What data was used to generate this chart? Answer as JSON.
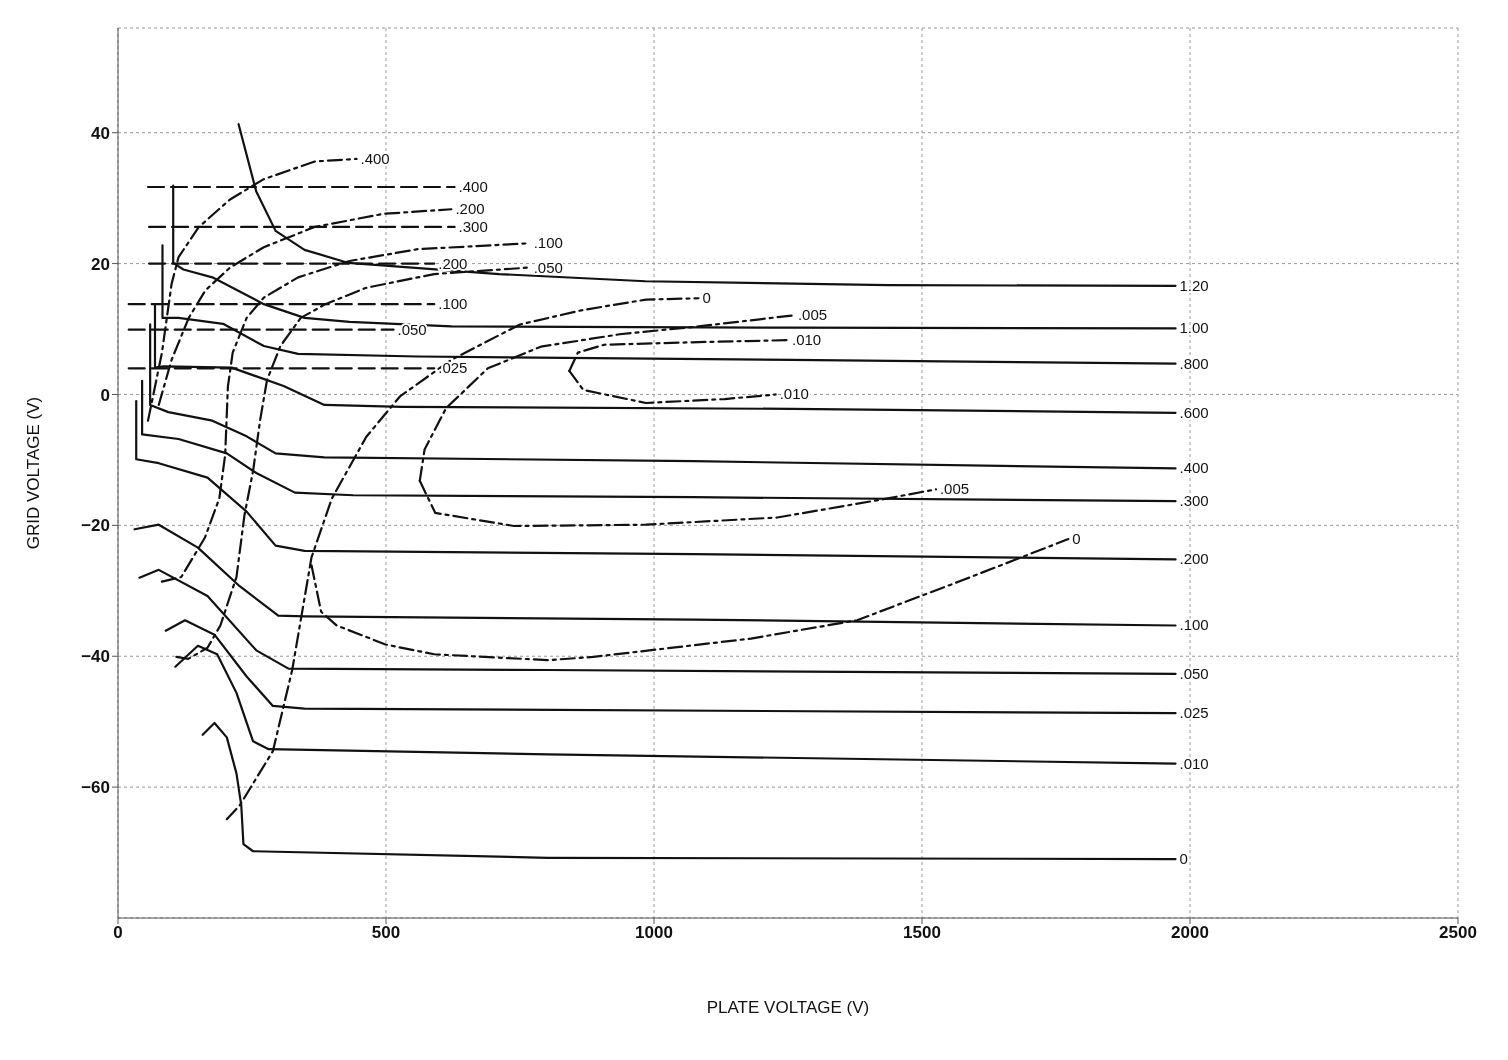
{
  "chart_data": {
    "type": "line",
    "xlabel": "PLATE VOLTAGE (V)",
    "ylabel": "GRID VOLTAGE (V)",
    "xlim": [
      0,
      2500
    ],
    "ylim": [
      -80,
      56
    ],
    "xticks": [
      0,
      500,
      1000,
      1500,
      2000,
      2500
    ],
    "yticks": [
      -60,
      -40,
      -20,
      0,
      20,
      40
    ],
    "grid": true,
    "legend": false,
    "marker": "none",
    "series": [
      {
        "name": "1.20",
        "color": "#111111",
        "line_style": "solid",
        "x": [
          225,
          258,
          294,
          348,
          430,
          711,
          984,
          1437,
          1973
        ],
        "values": [
          41.3,
          31.0,
          25.0,
          22.1,
          20.1,
          18.4,
          17.3,
          16.7,
          16.6
        ]
      },
      {
        "name": "1.00",
        "color": "#111111",
        "line_style": "solid",
        "x": [
          103,
          103,
          122,
          176,
          272,
          348,
          432,
          622,
          1256,
          1973
        ],
        "values": [
          31.9,
          20.1,
          19.1,
          17.9,
          13.8,
          11.7,
          11.1,
          10.4,
          10.2,
          10.1
        ]
      },
      {
        "name": ".800",
        "color": "#111111",
        "line_style": "solid",
        "x": [
          83,
          83,
          113,
          196,
          272,
          336,
          559,
          1256,
          1973
        ],
        "values": [
          22.8,
          11.7,
          11.7,
          10.8,
          7.4,
          6.2,
          5.8,
          5.3,
          4.7
        ]
      },
      {
        "name": ".600",
        "color": "#111111",
        "line_style": "solid",
        "x": [
          69,
          69,
          85,
          212,
          309,
          385,
          530,
          1256,
          1973
        ],
        "values": [
          13.8,
          4.1,
          4.3,
          4.1,
          1.3,
          -1.6,
          -1.9,
          -2.2,
          -2.8
        ]
      },
      {
        "name": ".400",
        "color": "#111111",
        "line_style": "solid",
        "x": [
          60,
          60,
          94,
          176,
          240,
          294,
          385,
          1074,
          1973
        ],
        "values": [
          10.7,
          -1.6,
          -2.7,
          -4.0,
          -6.4,
          -9.0,
          -9.6,
          -10.2,
          -11.3
        ]
      },
      {
        "name": ".300",
        "color": "#111111",
        "line_style": "solid",
        "x": [
          45,
          45,
          113,
          203,
          258,
          330,
          439,
          1074,
          1973
        ],
        "values": [
          2.1,
          -6.1,
          -6.8,
          -9.0,
          -12.0,
          -15.0,
          -15.4,
          -15.7,
          -16.3
        ]
      },
      {
        "name": ".200",
        "color": "#111111",
        "line_style": "solid",
        "x": [
          34,
          34,
          76,
          167,
          240,
          294,
          348,
          1074,
          1973
        ],
        "values": [
          -1.0,
          -9.9,
          -10.5,
          -12.7,
          -17.9,
          -23.1,
          -23.9,
          -24.4,
          -25.2
        ]
      },
      {
        "name": ".100",
        "color": "#111111",
        "line_style": "solid",
        "x": [
          31,
          76,
          149,
          227,
          299,
          348,
          1074,
          1973
        ],
        "values": [
          -20.6,
          -19.9,
          -23.4,
          -29.3,
          -33.8,
          -33.9,
          -34.4,
          -35.3
        ]
      },
      {
        "name": ".050",
        "color": "#111111",
        "line_style": "solid",
        "x": [
          40,
          76,
          167,
          258,
          318,
          802,
          1973
        ],
        "values": [
          -28.0,
          -26.8,
          -30.8,
          -39.1,
          -41.9,
          -42.1,
          -42.7
        ]
      },
      {
        "name": ".025",
        "color": "#111111",
        "line_style": "solid",
        "x": [
          89,
          125,
          180,
          240,
          289,
          348,
          1973
        ],
        "values": [
          -36.1,
          -34.5,
          -36.7,
          -43.1,
          -47.6,
          -48.0,
          -48.7
        ]
      },
      {
        "name": ".010",
        "color": "#111111",
        "line_style": "solid",
        "x": [
          107,
          149,
          185,
          221,
          252,
          281,
          802,
          1973
        ],
        "values": [
          -41.6,
          -38.4,
          -39.7,
          -45.6,
          -53.0,
          -54.2,
          -55.0,
          -56.4
        ]
      },
      {
        "name": "0",
        "color": "#111111",
        "line_style": "solid",
        "x": [
          158,
          180,
          203,
          221,
          230,
          234,
          252,
          802,
          1973
        ],
        "values": [
          -52.0,
          -50.2,
          -52.4,
          -57.9,
          -62.8,
          -68.7,
          -69.8,
          -70.8,
          -71.0
        ]
      },
      {
        "name": ".400",
        "color": "#111111",
        "line_style": "dashed",
        "x": [
          56,
          628
        ],
        "values": [
          31.7,
          31.7
        ]
      },
      {
        "name": ".300",
        "color": "#111111",
        "line_style": "dashed",
        "x": [
          58,
          628
        ],
        "values": [
          25.6,
          25.6
        ]
      },
      {
        "name": ".200",
        "color": "#111111",
        "line_style": "dashed",
        "x": [
          58,
          590
        ],
        "values": [
          20.0,
          20.0
        ]
      },
      {
        "name": ".100",
        "color": "#111111",
        "line_style": "dashed",
        "x": [
          20,
          590
        ],
        "values": [
          13.8,
          13.8
        ]
      },
      {
        "name": ".050",
        "color": "#111111",
        "line_style": "dashed",
        "x": [
          20,
          514
        ],
        "values": [
          9.9,
          9.9
        ]
      },
      {
        "name": ".025",
        "color": "#111111",
        "line_style": "dashed",
        "x": [
          20,
          590
        ],
        "values": [
          4.0,
          4.0
        ]
      },
      {
        "name": ".400",
        "color": "#111111",
        "line_style": "dotted",
        "x": [
          56,
          82,
          100,
          113,
          151,
          209,
          272,
          367,
          445
        ],
        "values": [
          -4.0,
          6.4,
          16.9,
          21.0,
          25.6,
          29.8,
          32.9,
          35.6,
          36.0
        ]
      },
      {
        "name": ".200",
        "color": "#111111",
        "line_style": "dotted",
        "x": [
          76,
          100,
          132,
          163,
          209,
          272,
          367,
          495,
          622
        ],
        "values": [
          -1.6,
          5.3,
          11.7,
          15.9,
          19.4,
          22.5,
          25.6,
          27.6,
          28.3
        ]
      },
      {
        "name": ".100",
        "color": "#111111",
        "line_style": "dotted",
        "x": [
          82,
          118,
          162,
          189,
          200,
          205,
          214,
          240,
          272,
          336,
          432,
          559,
          768
        ],
        "values": [
          -28.6,
          -27.9,
          -21.9,
          -15.9,
          -9.2,
          1.2,
          6.4,
          11.7,
          14.8,
          17.9,
          20.4,
          22.2,
          23.1
        ]
      },
      {
        "name": ".050",
        "color": "#111111",
        "line_style": "dotted",
        "x": [
          109,
          131,
          167,
          191,
          221,
          236,
          252,
          265,
          278,
          303,
          341,
          387,
          463,
          590,
          768
        ],
        "values": [
          -40.1,
          -40.4,
          -38.7,
          -35.3,
          -27.9,
          -18.4,
          -11.7,
          -4.0,
          2.2,
          7.4,
          11.7,
          13.8,
          16.3,
          18.4,
          19.4
        ]
      },
      {
        "name": "0",
        "color": "#111111",
        "line_style": "dotted",
        "x": [
          203,
          227,
          289,
          325,
          361,
          399,
          463,
          526,
          622,
          750,
          867,
          985,
          1083
        ],
        "values": [
          -64.9,
          -62.8,
          -54.5,
          -42.1,
          -24.9,
          -15.9,
          -6.5,
          -0.3,
          5.3,
          10.7,
          12.9,
          14.5,
          14.7
        ]
      },
      {
        "name": "0",
        "color": "#111111",
        "line_style": "dotted",
        "x": [
          361,
          379,
          408,
          499,
          590,
          802,
          887,
          1181,
          1379,
          1575,
          1773
        ],
        "values": [
          -26.1,
          -33.2,
          -35.3,
          -38.2,
          -39.7,
          -40.6,
          -40.1,
          -37.3,
          -34.5,
          -28.4,
          -22.1
        ]
      },
      {
        "name": ".005",
        "color": "#111111",
        "line_style": "dotted",
        "x": [
          563,
          572,
          612,
          690,
          789,
          936,
          1083,
          1261
        ],
        "values": [
          -13.2,
          -8.4,
          -2.1,
          4.0,
          7.3,
          9.2,
          10.4,
          12.1
        ]
      },
      {
        "name": ".005",
        "color": "#111111",
        "line_style": "dotted",
        "x": [
          563,
          592,
          739,
          985,
          1230,
          1428,
          1526
        ],
        "values": [
          -13.2,
          -18.1,
          -20.1,
          -19.9,
          -18.8,
          -16.0,
          -14.5
        ]
      },
      {
        "name": ".010",
        "color": "#111111",
        "line_style": "dotted",
        "x": [
          842,
          858,
          907,
          1083,
          1250
        ],
        "values": [
          3.6,
          6.4,
          7.6,
          8.0,
          8.3
        ]
      },
      {
        "name": ".010",
        "color": "#111111",
        "line_style": "dotted",
        "x": [
          842,
          868,
          985,
          1132,
          1227
        ],
        "values": [
          3.6,
          0.7,
          -1.3,
          -0.7,
          0.0
        ]
      }
    ]
  }
}
